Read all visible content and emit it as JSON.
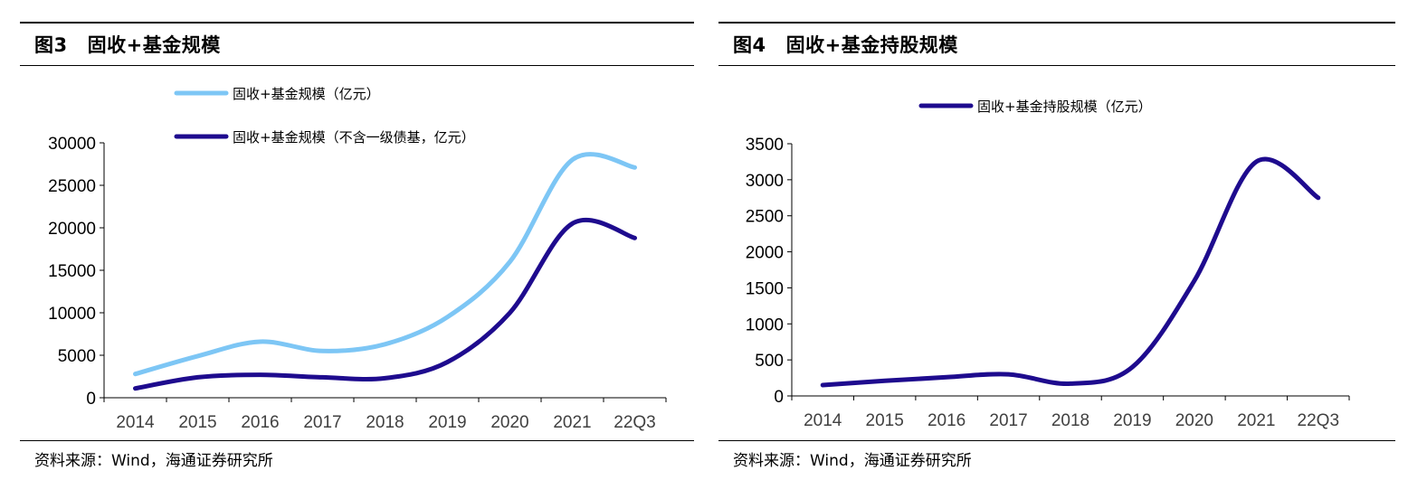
{
  "figures": [
    {
      "number": "图3",
      "title": "固收+基金规模",
      "source": "资料来源：Wind，海通证券研究所"
    },
    {
      "number": "图4",
      "title": "固收+基金持股规模",
      "source": "资料来源：Wind，海通证券研究所"
    }
  ],
  "chart_data": [
    {
      "type": "line",
      "categories": [
        "2014",
        "2015",
        "2016",
        "2017",
        "2018",
        "2019",
        "2020",
        "2021",
        "22Q3"
      ],
      "ylim": [
        0,
        30000
      ],
      "yticks": [
        0,
        5000,
        10000,
        15000,
        20000,
        25000,
        30000
      ],
      "grid": false,
      "legend_position": "top",
      "series": [
        {
          "name": "固收+基金规模（亿元）",
          "color": "#7DC6F5",
          "values": [
            2800,
            4900,
            6600,
            5500,
            6300,
            9500,
            16000,
            28000,
            27100
          ]
        },
        {
          "name": "固收+基金规模（不含一级债基，亿元）",
          "color": "#1E0B8E",
          "values": [
            1100,
            2400,
            2700,
            2400,
            2300,
            4200,
            10000,
            20500,
            18800
          ]
        }
      ]
    },
    {
      "type": "line",
      "categories": [
        "2014",
        "2015",
        "2016",
        "2017",
        "2018",
        "2019",
        "2020",
        "2021",
        "22Q3"
      ],
      "ylim": [
        0,
        3500
      ],
      "yticks": [
        0,
        500,
        1000,
        1500,
        2000,
        2500,
        3000,
        3500
      ],
      "grid": false,
      "legend_position": "top",
      "series": [
        {
          "name": "固收+基金持股规模（亿元）",
          "color": "#1E0B8E",
          "values": [
            150,
            210,
            260,
            300,
            170,
            400,
            1600,
            3250,
            2750
          ]
        }
      ]
    }
  ]
}
